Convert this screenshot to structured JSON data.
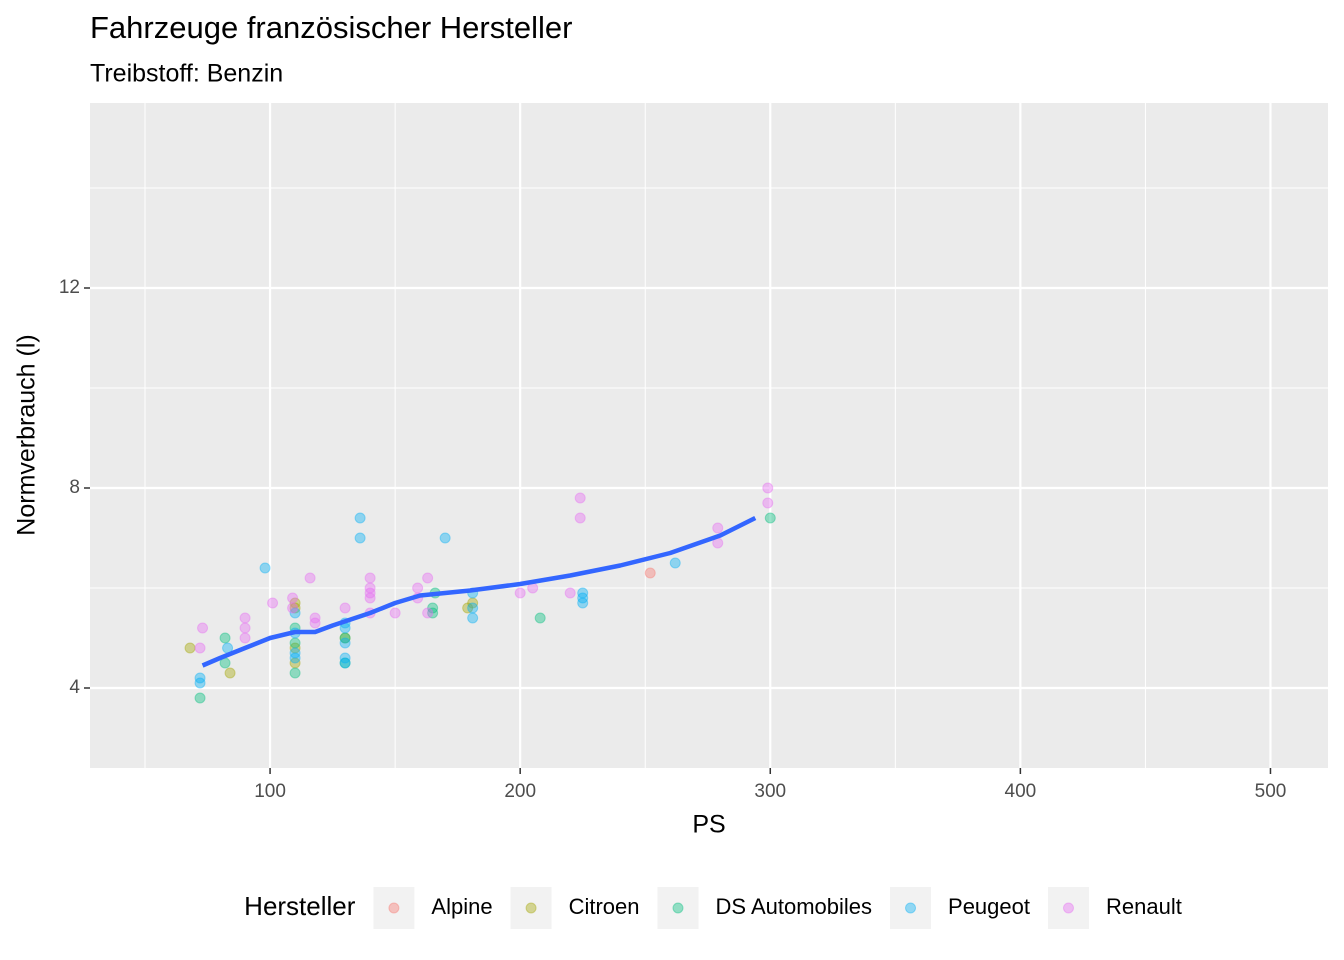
{
  "chart_data": {
    "type": "scatter",
    "title": "Fahrzeuge französischer Hersteller",
    "subtitle": "Treibstoff: Benzin",
    "x_label": "PS",
    "y_label": "Normverbrauch (l)",
    "xlim": [
      28,
      523
    ],
    "ylim": [
      2.4,
      15.7
    ],
    "xticks": [
      100,
      200,
      300,
      400,
      500
    ],
    "yticks": [
      4,
      8,
      12
    ],
    "x_minor_grid": [
      50,
      150,
      250,
      350,
      450
    ],
    "y_minor_grid": [
      6,
      10,
      14
    ],
    "grid": true,
    "legend_title": "Hersteller",
    "legend_position": "bottom",
    "point_opacity": 0.4,
    "series": [
      {
        "name": "Alpine",
        "color": "#F8766D",
        "x": [
          252
        ],
        "values": [
          6.3
        ]
      },
      {
        "name": "Citroen",
        "color": "#A3A500",
        "x": [
          68,
          84,
          110,
          110,
          110,
          110,
          130,
          179,
          181
        ],
        "values": [
          4.8,
          4.3,
          5.7,
          5.6,
          4.5,
          4.8,
          5.0,
          5.6,
          5.7
        ]
      },
      {
        "name": "DS Automobiles",
        "color": "#00BF7D",
        "x": [
          82,
          82,
          72,
          110,
          110,
          110,
          130,
          130,
          165,
          165,
          166,
          208,
          300
        ],
        "values": [
          5.0,
          4.5,
          3.8,
          5.2,
          4.9,
          4.3,
          5.0,
          4.5,
          5.6,
          5.5,
          5.9,
          5.4,
          7.4
        ]
      },
      {
        "name": "Peugeot",
        "color": "#00B0F6",
        "x": [
          98,
          72,
          72,
          83,
          110,
          110,
          110,
          110,
          130,
          130,
          130,
          130,
          130,
          136,
          136,
          170,
          181,
          181,
          181,
          225,
          225,
          225,
          262
        ],
        "values": [
          6.4,
          4.2,
          4.1,
          4.8,
          5.5,
          5.1,
          4.6,
          4.7,
          5.3,
          5.2,
          4.9,
          4.6,
          4.5,
          7.4,
          7.0,
          7.0,
          5.9,
          5.6,
          5.4,
          5.9,
          5.8,
          5.7,
          6.5
        ]
      },
      {
        "name": "Renault",
        "color": "#E76BF3",
        "x": [
          72,
          73,
          90,
          90,
          90,
          101,
          109,
          109,
          116,
          118,
          118,
          130,
          140,
          140,
          140,
          140,
          140,
          150,
          159,
          159,
          163,
          163,
          200,
          205,
          220,
          224,
          224,
          279,
          279,
          299,
          299
        ],
        "values": [
          4.8,
          5.2,
          5.4,
          5.2,
          5.0,
          5.7,
          5.8,
          5.6,
          6.2,
          5.4,
          5.3,
          5.6,
          6.2,
          6.0,
          5.8,
          5.9,
          5.5,
          5.5,
          6.0,
          5.8,
          6.2,
          5.5,
          5.9,
          6.0,
          5.9,
          7.8,
          7.4,
          7.2,
          6.9,
          8.0,
          7.7
        ]
      }
    ],
    "trend": {
      "color": "#3366FF",
      "x": [
        73,
        80,
        90,
        100,
        110,
        118,
        125,
        140,
        150,
        160,
        180,
        200,
        220,
        240,
        260,
        280,
        294
      ],
      "values": [
        4.45,
        4.6,
        4.8,
        5.0,
        5.12,
        5.12,
        5.25,
        5.5,
        5.7,
        5.85,
        5.95,
        6.08,
        6.25,
        6.45,
        6.7,
        7.05,
        7.4
      ]
    }
  }
}
